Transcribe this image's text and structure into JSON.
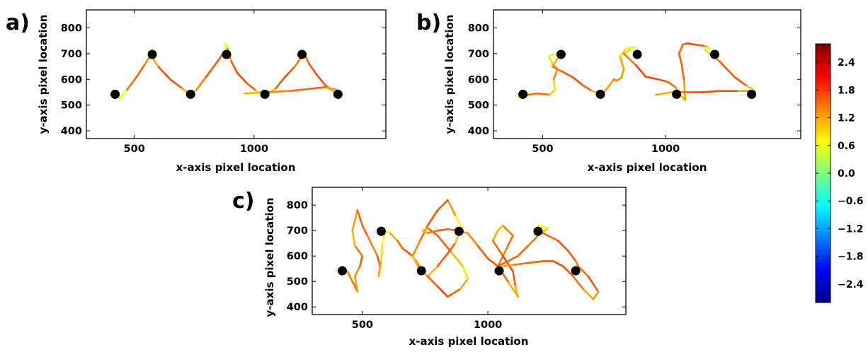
{
  "chart_data": [
    {
      "type": "line",
      "panel_label": "a)",
      "xlabel": "x-axis pixel location",
      "ylabel": "y-axis pixel location",
      "xlim": [
        300,
        1550
      ],
      "ylim": [
        370,
        870
      ],
      "xticks": [
        500,
        1000
      ],
      "yticks": [
        400,
        500,
        600,
        700,
        800
      ],
      "targets": [
        [
          420,
          542
        ],
        [
          575,
          697
        ],
        [
          735,
          542
        ],
        [
          885,
          697
        ],
        [
          1045,
          542
        ],
        [
          1200,
          697
        ],
        [
          1350,
          542
        ]
      ],
      "trajectory": {
        "x": [
          425,
          440,
          470,
          510,
          545,
          565,
          580,
          575,
          560,
          600,
          650,
          700,
          735,
          760,
          800,
          840,
          870,
          885,
          880,
          890,
          905,
          930,
          970,
          1010,
          1045,
          1060,
          1090,
          1130,
          1170,
          1200,
          1205,
          1195,
          1215,
          1230,
          1260,
          1290,
          1320,
          1345,
          1360,
          1345,
          1300,
          1250,
          1150,
          1050,
          960
        ],
        "y": [
          540,
          525,
          560,
          610,
          660,
          690,
          700,
          715,
          705,
          650,
          600,
          565,
          540,
          560,
          610,
          660,
          700,
          715,
          740,
          720,
          670,
          625,
          585,
          555,
          540,
          545,
          565,
          610,
          650,
          690,
          710,
          700,
          690,
          660,
          620,
          585,
          560,
          545,
          540,
          560,
          570,
          565,
          555,
          550,
          545
        ],
        "v": [
          0.2,
          0.0,
          1.4,
          1.6,
          1.5,
          1.1,
          0.5,
          0.2,
          0.8,
          1.6,
          1.7,
          1.6,
          0.7,
          1.2,
          1.6,
          1.7,
          1.5,
          0.5,
          0.4,
          0.9,
          1.6,
          1.7,
          1.7,
          1.5,
          0.2,
          0.6,
          1.5,
          1.7,
          1.6,
          1.2,
          0.6,
          0.4,
          1.3,
          1.6,
          1.7,
          1.7,
          1.5,
          0.6,
          0.1,
          1.0,
          1.5,
          1.6,
          1.5,
          1.3,
          0.9
        ]
      }
    },
    {
      "type": "line",
      "panel_label": "b)",
      "xlabel": "x-axis pixel location",
      "ylabel": "y-axis pixel location",
      "xlim": [
        300,
        1550
      ],
      "ylim": [
        370,
        870
      ],
      "xticks": [
        500,
        1000
      ],
      "yticks": [
        400,
        500,
        600,
        700,
        800
      ],
      "targets": [
        [
          420,
          542
        ],
        [
          575,
          697
        ],
        [
          735,
          542
        ],
        [
          885,
          697
        ],
        [
          1045,
          542
        ],
        [
          1200,
          697
        ],
        [
          1350,
          542
        ]
      ],
      "trajectory": {
        "x": [
          400,
          440,
          480,
          530,
          550,
          545,
          560,
          540,
          525,
          535,
          565,
          560,
          540,
          580,
          620,
          660,
          700,
          735,
          750,
          790,
          800,
          820,
          830,
          815,
          840,
          875,
          855,
          830,
          880,
          920,
          970,
          1010,
          1040,
          1060,
          1080,
          1075,
          1065,
          1055,
          1070,
          1090,
          1120,
          1160,
          1180,
          1175,
          1160,
          1180,
          1220,
          1280,
          1330,
          1360,
          1340,
          1290,
          1220,
          1150,
          1090,
          1030,
          960
        ],
        "y": [
          530,
          540,
          545,
          540,
          560,
          600,
          640,
          660,
          690,
          695,
          700,
          680,
          650,
          630,
          610,
          580,
          555,
          545,
          550,
          600,
          595,
          605,
          640,
          690,
          720,
          725,
          715,
          700,
          655,
          610,
          600,
          590,
          570,
          540,
          520,
          600,
          660,
          700,
          735,
          740,
          735,
          730,
          720,
          725,
          715,
          700,
          670,
          610,
          575,
          560,
          555,
          555,
          555,
          550,
          550,
          550,
          540
        ],
        "v": [
          0.3,
          1.4,
          1.6,
          1.4,
          0.6,
          1.2,
          1.5,
          1.0,
          0.8,
          0.4,
          0.6,
          1.0,
          1.3,
          1.6,
          1.7,
          1.7,
          1.5,
          0.6,
          1.0,
          1.5,
          1.4,
          1.3,
          1.3,
          1.1,
          0.7,
          0.4,
          0.8,
          1.2,
          1.7,
          1.8,
          1.7,
          1.6,
          1.5,
          1.2,
          1.0,
          1.5,
          1.6,
          1.6,
          1.5,
          1.7,
          1.8,
          1.5,
          0.9,
          0.4,
          0.6,
          1.1,
          1.5,
          1.7,
          1.6,
          0.5,
          0.8,
          1.6,
          1.7,
          1.7,
          1.6,
          1.4,
          1.0
        ]
      }
    },
    {
      "type": "line",
      "panel_label": "c)",
      "xlabel": "x-axis pixel location",
      "ylabel": "y-axis pixel location",
      "xlim": [
        300,
        1550
      ],
      "ylim": [
        370,
        870
      ],
      "xticks": [
        500,
        1000
      ],
      "yticks": [
        400,
        500,
        600,
        700,
        800
      ],
      "targets": [
        [
          420,
          542
        ],
        [
          575,
          697
        ],
        [
          735,
          542
        ],
        [
          885,
          697
        ],
        [
          1045,
          542
        ],
        [
          1200,
          697
        ],
        [
          1350,
          542
        ]
      ],
      "trajectory": {
        "x": [
          400,
          440,
          460,
          480,
          470,
          490,
          500,
          470,
          460,
          480,
          500,
          520,
          540,
          560,
          570,
          565,
          575,
          580,
          590,
          610,
          640,
          660,
          700,
          740,
          760,
          800,
          840,
          870,
          885,
          900,
          870,
          840,
          800,
          760,
          730,
          700,
          720,
          760,
          800,
          840,
          890,
          920,
          900,
          850,
          800,
          760,
          740,
          760,
          800,
          840,
          880,
          920,
          960,
          1000,
          1040,
          1060,
          1080,
          1100,
          1060,
          1040,
          1020,
          1060,
          1100,
          1110,
          1120,
          1080,
          1040,
          1080,
          1120,
          1160,
          1200,
          1240,
          1200,
          1190,
          1220,
          1280,
          1320,
          1350,
          1360,
          1400,
          1420,
          1440,
          1420,
          1380,
          1340,
          1300,
          1260,
          1220,
          1180,
          1140,
          1100,
          1060,
          1050
        ],
        "y": [
          545,
          540,
          500,
          460,
          520,
          560,
          600,
          640,
          700,
          780,
          720,
          680,
          640,
          600,
          560,
          520,
          580,
          650,
          700,
          690,
          660,
          630,
          600,
          540,
          520,
          560,
          610,
          650,
          690,
          700,
          760,
          820,
          780,
          720,
          660,
          600,
          560,
          520,
          480,
          440,
          470,
          510,
          560,
          620,
          680,
          710,
          700,
          690,
          700,
          705,
          700,
          690,
          640,
          590,
          560,
          600,
          640,
          680,
          720,
          700,
          660,
          600,
          540,
          480,
          440,
          500,
          560,
          580,
          600,
          640,
          680,
          710,
          720,
          700,
          690,
          660,
          620,
          580,
          560,
          520,
          490,
          460,
          430,
          470,
          520,
          560,
          580,
          580,
          575,
          570,
          565,
          560,
          555
        ],
        "v": [
          0.3,
          1.2,
          1.6,
          1.4,
          1.1,
          1.5,
          1.7,
          1.2,
          1.0,
          1.4,
          1.7,
          1.5,
          1.3,
          1.5,
          1.6,
          1.3,
          1.0,
          0.8,
          0.5,
          0.9,
          1.4,
          1.6,
          1.7,
          1.3,
          0.7,
          1.5,
          1.7,
          1.5,
          0.6,
          0.4,
          1.0,
          1.6,
          1.7,
          1.6,
          1.5,
          1.2,
          0.9,
          1.5,
          1.7,
          1.8,
          1.4,
          1.0,
          0.7,
          1.5,
          1.7,
          1.5,
          0.8,
          1.3,
          1.6,
          1.6,
          1.4,
          1.1,
          1.6,
          1.7,
          1.6,
          1.3,
          1.5,
          1.6,
          1.2,
          0.9,
          1.4,
          1.7,
          1.8,
          1.4,
          0.8,
          1.5,
          1.6,
          1.6,
          1.5,
          1.6,
          1.3,
          0.8,
          0.5,
          0.9,
          1.4,
          1.7,
          1.7,
          1.6,
          1.4,
          1.6,
          1.7,
          1.5,
          1.0,
          1.4,
          1.6,
          1.7,
          1.7,
          1.6,
          1.6,
          1.5,
          1.4,
          1.2,
          0.9
        ]
      }
    }
  ],
  "colorbar": {
    "type": "colorbar",
    "colormap": "jet",
    "range": [
      -2.8,
      2.8
    ],
    "ticks": [
      2.4,
      1.8,
      1.2,
      0.6,
      0.0,
      -0.6,
      -1.2,
      -1.8,
      -2.4
    ],
    "tick_labels": [
      "2.4",
      "1.8",
      "1.2",
      "0.6",
      "0.0",
      "−0.6",
      "−1.2",
      "−1.8",
      "−2.4"
    ]
  }
}
